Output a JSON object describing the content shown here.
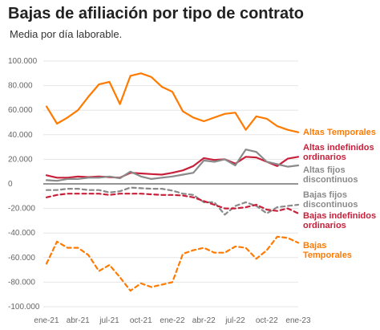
{
  "title": "Bajas de afiliación por tipo de contrato",
  "subtitle": "Media por día laborable.",
  "colors": {
    "orange": "#ff7a00",
    "red": "#c8203b",
    "gray": "#8a8a8a",
    "zero_line": "#555555",
    "grid": "#e6e6e6"
  },
  "chart_data": {
    "type": "line",
    "title": "Bajas de afiliación por tipo de contrato",
    "subtitle": "Media por día laborable.",
    "xlabel": "",
    "ylabel": "",
    "ylim": [
      -100000,
      100000
    ],
    "y_ticks": [
      100000,
      80000,
      60000,
      40000,
      20000,
      0,
      -20000,
      -40000,
      -60000,
      -80000,
      -100000
    ],
    "y_tick_labels": [
      "100.000",
      "80.000",
      "60.000",
      "40.000",
      "20.000",
      "0",
      "-20.000",
      "-40.000",
      "-60.000",
      "-80.000",
      "-100.000"
    ],
    "x_tick_labels": [
      "ene-21",
      "abr-21",
      "jul-21",
      "oct-21",
      "ene-22",
      "abr-22",
      "jul-22",
      "oct-22",
      "ene-23"
    ],
    "x_tick_index": [
      0,
      3,
      6,
      9,
      12,
      15,
      18,
      21,
      24
    ],
    "x": [
      "ene-21",
      "feb-21",
      "mar-21",
      "abr-21",
      "may-21",
      "jun-21",
      "jul-21",
      "ago-21",
      "sep-21",
      "oct-21",
      "nov-21",
      "dic-21",
      "ene-22",
      "feb-22",
      "mar-22",
      "abr-22",
      "may-22",
      "jun-22",
      "jul-22",
      "ago-22",
      "sep-22",
      "oct-22",
      "nov-22",
      "dic-22",
      "ene-23"
    ],
    "grid": true,
    "series": [
      {
        "name": "Altas Temporales",
        "color": "#ff7a00",
        "dashed": false,
        "label_lines": [
          "Altas Temporales"
        ],
        "values": [
          63000,
          49000,
          54000,
          60000,
          71000,
          81000,
          83000,
          65000,
          88000,
          90000,
          87000,
          79000,
          75000,
          59000,
          54000,
          51000,
          54000,
          57000,
          58000,
          44000,
          55000,
          53000,
          47000,
          44000,
          42000
        ]
      },
      {
        "name": "Altas indefinidos ordinarios",
        "color": "#c8203b",
        "dashed": false,
        "label_lines": [
          "Altas indefinidos",
          "ordinarios"
        ],
        "values": [
          7000,
          5000,
          5000,
          6000,
          5500,
          6000,
          5500,
          5000,
          9000,
          8500,
          8000,
          7500,
          9000,
          11000,
          14500,
          21000,
          19500,
          20000,
          16500,
          22000,
          21500,
          18000,
          14500,
          20500,
          22000
        ]
      },
      {
        "name": "Altas fijos discontinuos",
        "color": "#8a8a8a",
        "dashed": false,
        "label_lines": [
          "Altas fijos",
          "discontinuos"
        ],
        "values": [
          3000,
          2500,
          4000,
          4000,
          5000,
          5000,
          6000,
          4500,
          10000,
          6000,
          4000,
          5000,
          6000,
          7500,
          9000,
          19000,
          18000,
          20000,
          15000,
          28000,
          26000,
          18000,
          16000,
          14000,
          15000
        ]
      },
      {
        "name": "Bajas fijos discontinuos",
        "color": "#8a8a8a",
        "dashed": true,
        "label_lines": [
          "Bajas fijos",
          "discontinuos"
        ],
        "values": [
          -5000,
          -5000,
          -4000,
          -4000,
          -5000,
          -5000,
          -7000,
          -6000,
          -3000,
          -3500,
          -4000,
          -4000,
          -5500,
          -8000,
          -9000,
          -15000,
          -15000,
          -25000,
          -18000,
          -15000,
          -18000,
          -24000,
          -19000,
          -18000,
          -17000
        ]
      },
      {
        "name": "Bajas indefinidos ordinarios",
        "color": "#c8203b",
        "dashed": true,
        "label_lines": [
          "Bajas indefinidos",
          "ordinarios"
        ],
        "values": [
          -11000,
          -9000,
          -8000,
          -8000,
          -8000,
          -8000,
          -9000,
          -8000,
          -8000,
          -8000,
          -8500,
          -9000,
          -9000,
          -9500,
          -11000,
          -14000,
          -17000,
          -20000,
          -20000,
          -19000,
          -17000,
          -21000,
          -22000,
          -20000,
          -24000
        ]
      },
      {
        "name": "Bajas Temporales",
        "color": "#ff7a00",
        "dashed": true,
        "label_lines": [
          "Bajas",
          "Temporales"
        ],
        "values": [
          -65000,
          -47000,
          -52000,
          -52000,
          -58000,
          -71000,
          -66000,
          -76000,
          -87000,
          -81000,
          -84000,
          -82000,
          -80000,
          -57000,
          -54000,
          -52000,
          -56000,
          -56000,
          -51000,
          -52000,
          -61000,
          -54000,
          -43000,
          -44000,
          -48000
        ]
      }
    ]
  }
}
